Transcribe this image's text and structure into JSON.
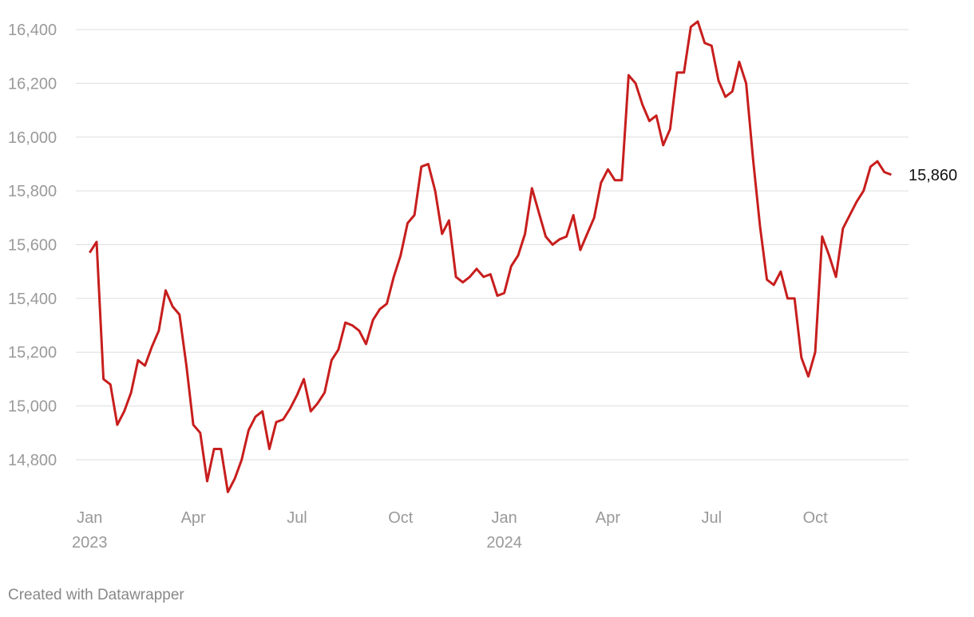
{
  "chart_data": {
    "type": "line",
    "x": [
      0,
      0.2,
      0.4,
      0.6,
      0.8,
      1,
      1.2,
      1.4,
      1.6,
      1.8,
      2,
      2.2,
      2.4,
      2.6,
      2.8,
      3,
      3.2,
      3.4,
      3.6,
      3.8,
      4,
      4.2,
      4.4,
      4.6,
      4.8,
      5,
      5.2,
      5.4,
      5.6,
      5.8,
      6,
      6.2,
      6.4,
      6.6,
      6.8,
      7,
      7.2,
      7.4,
      7.6,
      7.8,
      8,
      8.2,
      8.4,
      8.6,
      8.8,
      9,
      9.2,
      9.4,
      9.6,
      9.8,
      10,
      10.2,
      10.4,
      10.6,
      10.8,
      11,
      11.2,
      11.4,
      11.6,
      11.8,
      12,
      12.2,
      12.4,
      12.6,
      12.8,
      13,
      13.2,
      13.4,
      13.6,
      13.8,
      14,
      14.2,
      14.4,
      14.6,
      14.8,
      15,
      15.2,
      15.4,
      15.6,
      15.8,
      16,
      16.2,
      16.4,
      16.6,
      16.8,
      17,
      17.2,
      17.4,
      17.6,
      17.8,
      18,
      18.2,
      18.4,
      18.6,
      18.8,
      19,
      19.2,
      19.4,
      19.6,
      19.8,
      20,
      20.2,
      20.4,
      20.6,
      20.8,
      21,
      21.2,
      21.4,
      21.6,
      21.8,
      22,
      22.2,
      22.4,
      22.6,
      22.8,
      23,
      23.2
    ],
    "series": [
      {
        "color": "#c71e1d",
        "values": [
          15570,
          15610,
          15100,
          15080,
          14930,
          14980,
          15050,
          15170,
          15150,
          15220,
          15280,
          15430,
          15370,
          15340,
          15150,
          14930,
          14900,
          14720,
          14840,
          14840,
          14680,
          14730,
          14800,
          14910,
          14960,
          14980,
          14840,
          14940,
          14950,
          14990,
          15040,
          15100,
          14980,
          15010,
          15050,
          15170,
          15210,
          15310,
          15300,
          15280,
          15230,
          15320,
          15360,
          15380,
          15480,
          15560,
          15680,
          15710,
          15890,
          15900,
          15800,
          15640,
          15690,
          15480,
          15460,
          15480,
          15510,
          15480,
          15490,
          15410,
          15420,
          15520,
          15560,
          15640,
          15810,
          15720,
          15630,
          15600,
          15620,
          15630,
          15710,
          15580,
          15640,
          15700,
          15830,
          15880,
          15840,
          15840,
          16230,
          16200,
          16120,
          16060,
          16080,
          15970,
          16030,
          16240,
          16240,
          16410,
          16430,
          16350,
          16340,
          16210,
          16150,
          16170,
          16280,
          16200,
          15920,
          15670,
          15470,
          15450,
          15500,
          15400,
          15400,
          15180,
          15110,
          15200,
          15630,
          15560,
          15480,
          15660,
          15710,
          15760,
          15800,
          15890,
          15910,
          15870,
          15860
        ],
        "value_labels": [
          null,
          null,
          null,
          null,
          null,
          null,
          null,
          null,
          null,
          null,
          null,
          null,
          null,
          null,
          null,
          null,
          null,
          null,
          null,
          null,
          null,
          null,
          null,
          null,
          null,
          null,
          null,
          null,
          null,
          null,
          null,
          null,
          null,
          null,
          null,
          null,
          null,
          null,
          null,
          null,
          null,
          null,
          null,
          null,
          null,
          null,
          null,
          null,
          null,
          null,
          null,
          null,
          null,
          null,
          null,
          null,
          null,
          null,
          null,
          null,
          null,
          null,
          null,
          null,
          null,
          null,
          null,
          null,
          null,
          null,
          null,
          null,
          null,
          null,
          null,
          null,
          null,
          null,
          null,
          null,
          null,
          null,
          null,
          null,
          null,
          null,
          null,
          null,
          null,
          null,
          null,
          null,
          null,
          null,
          null,
          null,
          null,
          null,
          null,
          null,
          null,
          null,
          null,
          null,
          null,
          null,
          null,
          null,
          null,
          null,
          null,
          null,
          null,
          null,
          null,
          null,
          "15,860"
        ]
      }
    ],
    "xlim": [
      -0.4,
      23.7
    ],
    "xticks": [
      {
        "value": 0,
        "label": "Jan"
      },
      {
        "value": 3,
        "label": "Apr"
      },
      {
        "value": 6,
        "label": "Jul"
      },
      {
        "value": 9,
        "label": "Oct"
      },
      {
        "value": 12,
        "label": "Jan"
      },
      {
        "value": 15,
        "label": "Apr"
      },
      {
        "value": 18,
        "label": "Jul"
      },
      {
        "value": 21,
        "label": "Oct"
      }
    ],
    "x_tick_years": [
      {
        "value": 0,
        "label": "2023"
      },
      {
        "value": 12,
        "label": "2024"
      }
    ],
    "ylim": [
      14650,
      16450
    ],
    "yticks": [
      {
        "value": 14800,
        "label": "14,800"
      },
      {
        "value": 15000,
        "label": "15,000"
      },
      {
        "value": 15200,
        "label": "15,200"
      },
      {
        "value": 15400,
        "label": "15,400"
      },
      {
        "value": 15600,
        "label": "15,600"
      },
      {
        "value": 15800,
        "label": "15,800"
      },
      {
        "value": 16000,
        "label": "16,000"
      },
      {
        "value": 16200,
        "label": "16,200"
      },
      {
        "value": 16400,
        "label": "16,400"
      }
    ],
    "grid": true,
    "footer": "Created with Datawrapper"
  }
}
